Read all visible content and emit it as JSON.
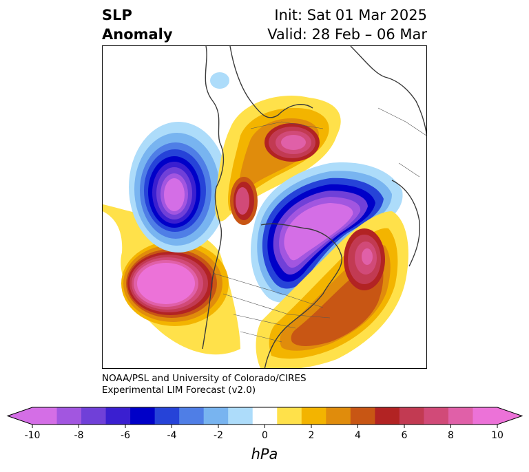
{
  "header": {
    "title_line1": "SLP",
    "title_line2": "Anomaly",
    "init": "Init: Sat 01 Mar 2025",
    "valid": "Valid: 28 Feb – 06 Mar"
  },
  "credit": {
    "line1": "NOAA/PSL and University of Colorado/CIRES",
    "line2": "Experimental LIM Forecast (v2.0)"
  },
  "colorbar": {
    "unit": "hPa",
    "tick_labels": [
      "-10",
      "-8",
      "-6",
      "-4",
      "-2",
      "0",
      "2",
      "4",
      "6",
      "8",
      "10"
    ],
    "bin_edges": [
      -10,
      -9,
      -8,
      -7,
      -6,
      -5,
      -4,
      -3,
      -2,
      -1,
      1,
      2,
      3,
      4,
      5,
      6,
      7,
      8,
      9,
      10
    ],
    "colors": [
      "#d46ee6",
      "#a256e0",
      "#7040d8",
      "#3a1fd0",
      "#0000c8",
      "#2643d8",
      "#4f7ee6",
      "#78b4f0",
      "#addcfa",
      "#ffffff",
      "#ffe14a",
      "#f3b400",
      "#e08c0c",
      "#c85614",
      "#b22323",
      "#c23a52",
      "#d14a78",
      "#e060a8",
      "#ec72d8"
    ],
    "under_color": "#d46ee6",
    "over_color": "#ec72d8"
  },
  "map": {
    "projection": "north polar stereographic",
    "field": "sea level pressure anomaly"
  }
}
